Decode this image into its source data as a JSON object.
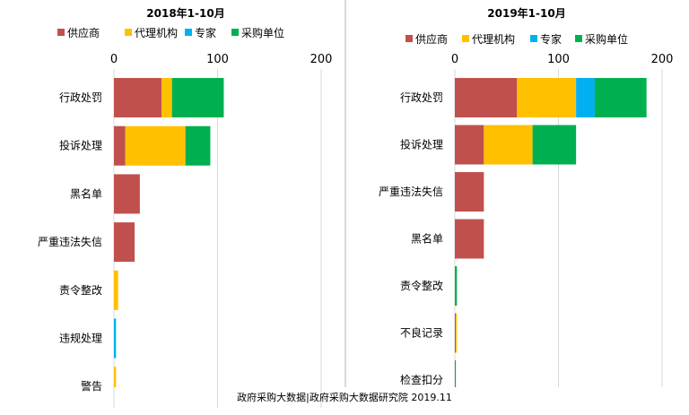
{
  "source_note": "政府采购大数据|政府采购大数据研究院 2019.11",
  "chart_data": [
    {
      "type": "bar",
      "orientation": "horizontal",
      "stacked": true,
      "title": "2018年1-10月",
      "legend_position": "top",
      "xlim": [
        0,
        200
      ],
      "x_ticks": [
        0,
        100,
        200
      ],
      "grid": true,
      "categories": [
        "行政处罚",
        "投诉处理",
        "黑名单",
        "严重违法失信",
        "责令整改",
        "违规处理",
        "警告"
      ],
      "series": [
        {
          "name": "供应商",
          "color": "#c0504d",
          "values": [
            46,
            11,
            25,
            20,
            0,
            0,
            0
          ]
        },
        {
          "name": "代理机构",
          "color": "#ffc000",
          "values": [
            10,
            58,
            0,
            0,
            4,
            0,
            2
          ]
        },
        {
          "name": "专家",
          "color": "#00b0f0",
          "values": [
            0,
            0,
            0,
            0,
            0,
            2,
            0
          ]
        },
        {
          "name": "采购单位",
          "color": "#00b050",
          "values": [
            50,
            24,
            0,
            0,
            0,
            0,
            0
          ]
        }
      ]
    },
    {
      "type": "bar",
      "orientation": "horizontal",
      "stacked": true,
      "title": "2019年1-10月",
      "legend_position": "top",
      "xlim": [
        0,
        200
      ],
      "x_ticks": [
        0,
        100,
        200
      ],
      "grid": true,
      "categories": [
        "行政处罚",
        "投诉处理",
        "严重违法失信",
        "黑名单",
        "责令整改",
        "不良记录",
        "检查扣分"
      ],
      "series": [
        {
          "name": "供应商",
          "color": "#c0504d",
          "values": [
            60,
            28,
            28,
            28,
            0,
            1,
            0
          ]
        },
        {
          "name": "代理机构",
          "color": "#ffc000",
          "values": [
            57,
            47,
            0,
            0,
            0,
            1,
            0
          ]
        },
        {
          "name": "专家",
          "color": "#00b0f0",
          "values": [
            18,
            0,
            0,
            0,
            0,
            0,
            0
          ]
        },
        {
          "name": "采购单位",
          "color": "#00b050",
          "values": [
            50,
            42,
            0,
            0,
            2,
            0,
            1
          ]
        }
      ]
    }
  ]
}
